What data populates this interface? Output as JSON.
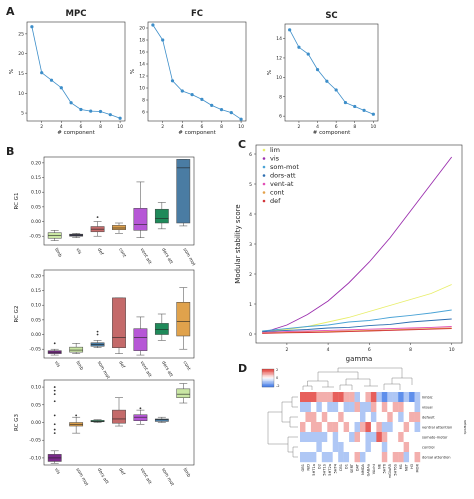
{
  "panel_labels": {
    "A": "A",
    "B": "B",
    "C": "C",
    "D": "D"
  },
  "chart_data": [
    {
      "type": "line",
      "panel": "A",
      "title": "MPC",
      "xlabel": "# component",
      "ylabel": "%",
      "x": [
        1,
        2,
        3,
        4,
        5,
        6,
        7,
        8,
        9,
        10
      ],
      "y": [
        26.8,
        15.2,
        13.3,
        11.4,
        7.6,
        5.9,
        5.5,
        5.4,
        4.6,
        3.7
      ],
      "xticks": [
        2,
        4,
        6,
        8,
        10
      ],
      "yticks": [
        5,
        10,
        15,
        20,
        25
      ],
      "ylim": [
        3,
        28
      ],
      "xlim": [
        0.5,
        10.5
      ],
      "color": "#3d8ec9"
    },
    {
      "type": "line",
      "panel": "A",
      "title": "FC",
      "xlabel": "# component",
      "ylabel": "%",
      "x": [
        1,
        2,
        3,
        4,
        5,
        6,
        7,
        8,
        9,
        10
      ],
      "y": [
        20.5,
        18.0,
        11.2,
        9.5,
        8.9,
        8.1,
        7.1,
        6.4,
        5.9,
        4.8
      ],
      "xticks": [
        2,
        4,
        6,
        8,
        10
      ],
      "yticks": [
        6,
        8,
        10,
        12,
        14,
        16,
        18,
        20
      ],
      "ylim": [
        4.5,
        21
      ],
      "xlim": [
        0.5,
        10.5
      ],
      "color": "#3d8ec9"
    },
    {
      "type": "line",
      "panel": "A",
      "title": "SC",
      "xlabel": "# component",
      "ylabel": "%",
      "x": [
        1,
        2,
        3,
        4,
        5,
        6,
        7,
        8,
        9,
        10
      ],
      "y": [
        14.9,
        13.1,
        12.4,
        10.8,
        9.6,
        8.7,
        7.4,
        7.0,
        6.6,
        6.2
      ],
      "xticks": [
        2,
        4,
        6,
        8,
        10
      ],
      "yticks": [
        6,
        8,
        10,
        12,
        14
      ],
      "ylim": [
        5.5,
        15.5
      ],
      "xlim": [
        0.5,
        10.5
      ],
      "color": "#3d8ec9"
    },
    {
      "type": "box",
      "panel": "B",
      "ylabel": "RC G1",
      "yticks": [
        -0.05,
        0.0,
        0.05,
        0.1,
        0.15,
        0.2
      ],
      "ylim": [
        -0.08,
        0.22
      ],
      "boxes": [
        {
          "label": "limb",
          "q1": -0.057,
          "med": -0.047,
          "q3": -0.038,
          "lo": -0.065,
          "hi": -0.03,
          "color": "#c9e6a3"
        },
        {
          "label": "vis",
          "q1": -0.05,
          "med": -0.046,
          "q3": -0.043,
          "lo": -0.055,
          "hi": -0.04,
          "color": "#3a3a55"
        },
        {
          "label": "def",
          "q1": -0.035,
          "med": -0.026,
          "q3": -0.017,
          "lo": -0.05,
          "hi": 0.0,
          "color": "#c46a6a",
          "outliers": [
            0.015
          ]
        },
        {
          "label": "cont",
          "q1": -0.028,
          "med": -0.022,
          "q3": -0.013,
          "lo": -0.04,
          "hi": -0.005,
          "color": "#e0a24c"
        },
        {
          "label": "vent att",
          "q1": -0.03,
          "med": -0.01,
          "q3": 0.045,
          "lo": -0.055,
          "hi": 0.135,
          "color": "#b657d6"
        },
        {
          "label": "dors att",
          "q1": -0.005,
          "med": 0.01,
          "q3": 0.042,
          "lo": -0.025,
          "hi": 0.065,
          "color": "#1f8a5a"
        },
        {
          "label": "som mot",
          "q1": -0.005,
          "med": 0.183,
          "q3": 0.212,
          "lo": -0.015,
          "hi": 0.212,
          "color": "#4a7ca3"
        }
      ]
    },
    {
      "type": "box",
      "panel": "B",
      "ylabel": "RC G2",
      "yticks": [
        -0.05,
        0.0,
        0.05,
        0.1,
        0.15,
        0.2
      ],
      "ylim": [
        -0.08,
        0.22
      ],
      "boxes": [
        {
          "label": "vis",
          "q1": -0.065,
          "med": -0.06,
          "q3": -0.055,
          "lo": -0.07,
          "hi": -0.05,
          "color": "#7a2a8a",
          "outliers": [
            -0.03
          ]
        },
        {
          "label": "limb",
          "q1": -0.06,
          "med": -0.053,
          "q3": -0.043,
          "lo": -0.065,
          "hi": -0.03,
          "color": "#c9e6a3"
        },
        {
          "label": "som mot",
          "q1": -0.04,
          "med": -0.034,
          "q3": -0.028,
          "lo": -0.045,
          "hi": -0.02,
          "color": "#4a7ca3",
          "outliers": [
            0.01,
            0.0
          ]
        },
        {
          "label": "def",
          "q1": -0.045,
          "med": -0.01,
          "q3": 0.125,
          "lo": -0.065,
          "hi": 0.125,
          "color": "#c46a6a"
        },
        {
          "label": "vent att",
          "q1": -0.055,
          "med": -0.01,
          "q3": 0.02,
          "lo": -0.07,
          "hi": 0.06,
          "color": "#b657d6"
        },
        {
          "label": "dors att",
          "q1": 0.0,
          "med": 0.017,
          "q3": 0.038,
          "lo": -0.02,
          "hi": 0.07,
          "color": "#1f8a5a"
        },
        {
          "label": "cont",
          "q1": -0.005,
          "med": 0.045,
          "q3": 0.11,
          "lo": -0.05,
          "hi": 0.16,
          "color": "#e0a24c"
        }
      ]
    },
    {
      "type": "box",
      "panel": "B",
      "ylabel": "RC G3",
      "yticks": [
        -0.1,
        -0.05,
        0.0,
        0.05,
        0.1
      ],
      "ylim": [
        -0.12,
        0.12
      ],
      "boxes": [
        {
          "label": "vis",
          "q1": -0.11,
          "med": -0.1,
          "q3": -0.09,
          "lo": -0.115,
          "hi": -0.08,
          "color": "#7a2a8a",
          "outliers": [
            0.1,
            0.09,
            0.08,
            0.06,
            -0.005,
            -0.02,
            -0.03,
            0.02
          ]
        },
        {
          "label": "som mot",
          "q1": -0.01,
          "med": -0.005,
          "q3": 0.0,
          "lo": -0.03,
          "hi": 0.015,
          "color": "#e0a24c",
          "outliers": [
            0.02
          ]
        },
        {
          "label": "dors att",
          "q1": 0.002,
          "med": 0.003,
          "q3": 0.006,
          "lo": 0.0,
          "hi": 0.008,
          "color": "#1f8a5a"
        },
        {
          "label": "def",
          "q1": -0.002,
          "med": 0.01,
          "q3": 0.035,
          "lo": -0.01,
          "hi": 0.07,
          "color": "#c46a6a"
        },
        {
          "label": "vent att",
          "q1": 0.005,
          "med": 0.015,
          "q3": 0.022,
          "lo": -0.005,
          "hi": 0.035,
          "color": "#b657d6",
          "outliers": [
            0.04
          ]
        },
        {
          "label": "som mot",
          "q1": 0.003,
          "med": 0.008,
          "q3": 0.01,
          "lo": 0.0,
          "hi": 0.015,
          "color": "#4a7ca3"
        },
        {
          "label": "limb",
          "q1": 0.07,
          "med": 0.08,
          "q3": 0.095,
          "lo": 0.055,
          "hi": 0.11,
          "color": "#c9e6a3"
        }
      ]
    },
    {
      "type": "line",
      "panel": "C",
      "xlabel": "gamma",
      "ylabel": "Modular stability score",
      "xticks": [
        2,
        4,
        6,
        8,
        10
      ],
      "yticks": [
        0,
        1,
        2,
        3,
        4,
        5,
        6
      ],
      "xlim": [
        0.5,
        10.5
      ],
      "ylim": [
        -0.3,
        6.3
      ],
      "legend": "top-left",
      "series": [
        {
          "name": "lim",
          "color": "#e8ee6a",
          "x": [
            0.8,
            2,
            3,
            4,
            5,
            6,
            7,
            8,
            9,
            10
          ],
          "y": [
            0.1,
            0.15,
            0.25,
            0.4,
            0.55,
            0.75,
            0.95,
            1.15,
            1.35,
            1.65
          ]
        },
        {
          "name": "vis",
          "color": "#9b2fae",
          "x": [
            0.8,
            1,
            2,
            3,
            4,
            5,
            6,
            7,
            8,
            9,
            10
          ],
          "y": [
            0.05,
            0.08,
            0.3,
            0.65,
            1.1,
            1.7,
            2.4,
            3.2,
            4.1,
            5.0,
            5.9
          ]
        },
        {
          "name": "som-mot",
          "color": "#4aa3d6",
          "x": [
            0.8,
            2,
            3,
            4,
            5,
            6,
            7,
            8,
            9,
            10
          ],
          "y": [
            0.1,
            0.18,
            0.25,
            0.3,
            0.4,
            0.45,
            0.55,
            0.62,
            0.7,
            0.8
          ]
        },
        {
          "name": "dors-att",
          "color": "#2c6db0",
          "x": [
            0.8,
            2,
            3,
            4,
            5,
            6,
            7,
            8,
            9,
            10
          ],
          "y": [
            0.08,
            0.12,
            0.15,
            0.2,
            0.22,
            0.28,
            0.32,
            0.4,
            0.45,
            0.5
          ]
        },
        {
          "name": "vent-at",
          "color": "#e24fb6",
          "x": [
            0.8,
            2,
            3,
            4,
            5,
            6,
            7,
            8,
            9,
            10
          ],
          "y": [
            0.05,
            0.08,
            0.1,
            0.12,
            0.14,
            0.16,
            0.18,
            0.2,
            0.22,
            0.25
          ]
        },
        {
          "name": "cont",
          "color": "#e4a14a",
          "x": [
            0.8,
            2,
            3,
            4,
            5,
            6,
            7,
            8,
            9,
            10
          ],
          "y": [
            0.03,
            0.05,
            0.07,
            0.08,
            0.1,
            0.12,
            0.14,
            0.16,
            0.18,
            0.2
          ]
        },
        {
          "name": "def",
          "color": "#d2353a",
          "x": [
            0.8,
            2,
            3,
            4,
            5,
            6,
            7,
            8,
            9,
            10
          ],
          "y": [
            0.02,
            0.04,
            0.05,
            0.06,
            0.08,
            0.1,
            0.12,
            0.14,
            0.16,
            0.18
          ]
        }
      ]
    },
    {
      "type": "heatmap",
      "panel": "D",
      "colorbar_ticks": [
        "2",
        "0",
        "-2"
      ],
      "vmin": -2.5,
      "vmax": 2.5,
      "cols": [
        "GB1",
        "N/D",
        "5HT1a",
        "D2",
        "5HT1b",
        "5HT2a",
        "5HT4",
        "CB1",
        "D1",
        "SERT",
        "DAT",
        "NMDA",
        "GABAa",
        "VAcht",
        "NE",
        "5HT6",
        "mGluR5",
        "5HT6b",
        "M1",
        "NET",
        "H3",
        "MOR"
      ],
      "row_header": "network",
      "rows": [
        "limbic",
        "visual",
        "default",
        "ventral attention",
        "somato-motor",
        "control",
        "dorsal attention"
      ],
      "values": [
        [
          2,
          2,
          2,
          1,
          1,
          1,
          2,
          2,
          1,
          1,
          -1,
          0,
          1,
          2,
          -1,
          -2,
          -1,
          -1,
          -2,
          -1,
          -2,
          -1
        ],
        [
          -1,
          -1,
          0,
          -1,
          0,
          -1,
          -1,
          0,
          -1,
          -1,
          1,
          -1,
          -1,
          1,
          0,
          1,
          0,
          1,
          1,
          0,
          0,
          -1
        ],
        [
          0,
          1,
          1,
          0,
          1,
          0,
          0,
          1,
          0,
          0,
          0,
          -1,
          0,
          -1,
          0,
          0,
          1,
          0,
          -1,
          0,
          1,
          1
        ],
        [
          1,
          0,
          1,
          1,
          0,
          1,
          1,
          0,
          1,
          0,
          -1,
          1,
          2,
          0,
          1,
          -1,
          -1,
          0,
          0,
          1,
          0,
          -1
        ],
        [
          -1,
          -1,
          -1,
          -1,
          -1,
          0,
          -1,
          0,
          0,
          -1,
          1,
          0,
          -1,
          -1,
          2,
          1,
          0,
          0,
          1,
          0,
          0,
          0
        ],
        [
          0,
          0,
          0,
          -1,
          0,
          0,
          -1,
          -1,
          0,
          0,
          0,
          0,
          -1,
          0,
          0,
          -1,
          0,
          0,
          0,
          1,
          0,
          0
        ],
        [
          -1,
          -1,
          -1,
          0,
          -1,
          -1,
          0,
          -1,
          -1,
          0,
          1,
          -1,
          0,
          0,
          0,
          1,
          0,
          1,
          1,
          -1,
          0,
          1
        ]
      ]
    }
  ]
}
